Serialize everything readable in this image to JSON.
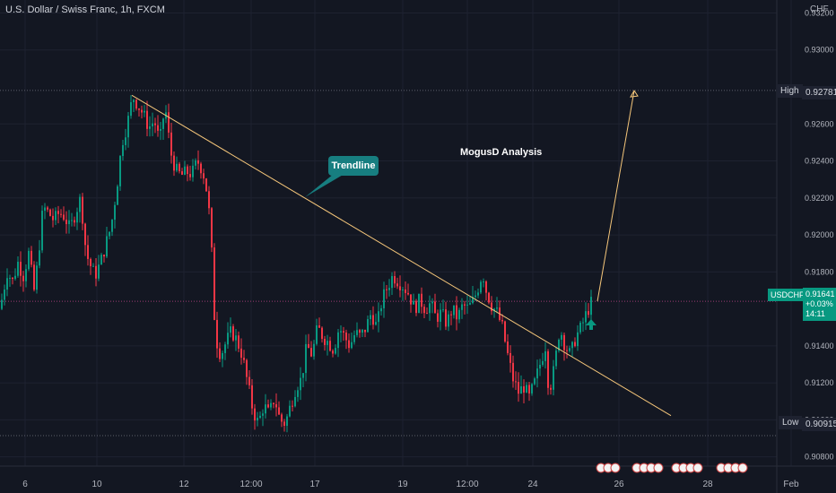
{
  "chart_data": {
    "type": "candlestick",
    "title": "U.S. Dollar / Swiss Franc, 1h, FXCM",
    "y_unit": "CHF",
    "ylim": [
      0.9075,
      0.9327
    ],
    "y_ticks": [
      "0.93200",
      "0.93000",
      "0.92600",
      "0.92400",
      "0.92200",
      "0.92000",
      "0.91800",
      "0.91400",
      "0.91200",
      "0.91000",
      "0.90800"
    ],
    "y_tick_values": [
      0.932,
      0.93,
      0.926,
      0.924,
      0.922,
      0.92,
      0.918,
      0.914,
      0.912,
      0.91,
      0.908
    ],
    "x_ticks": [
      "6",
      "10",
      "12",
      "12:00",
      "17",
      "19",
      "12:00",
      "24",
      "26",
      "28",
      "Feb"
    ],
    "high": {
      "label": "High",
      "value": "0.92781",
      "price": 0.92781
    },
    "low": {
      "label": "Low",
      "value": "0.90915",
      "price": 0.90915
    },
    "current": {
      "symbol": "USDCHF",
      "price_text": "0.91641",
      "change": "+0.03%",
      "countdown": "14:11",
      "price": 0.91641
    },
    "path": [
      [
        0,
        0.916
      ],
      [
        8,
        0.918
      ],
      [
        14,
        0.9175
      ],
      [
        20,
        0.9185
      ],
      [
        26,
        0.9178
      ],
      [
        32,
        0.919
      ],
      [
        38,
        0.917
      ],
      [
        42,
        0.9185
      ],
      [
        48,
        0.9215
      ],
      [
        54,
        0.9212
      ],
      [
        60,
        0.9208
      ],
      [
        66,
        0.9212
      ],
      [
        72,
        0.921
      ],
      [
        78,
        0.9203
      ],
      [
        84,
        0.9212
      ],
      [
        90,
        0.922
      ],
      [
        96,
        0.919
      ],
      [
        102,
        0.9182
      ],
      [
        106,
        0.9178
      ],
      [
        112,
        0.9185
      ],
      [
        118,
        0.9195
      ],
      [
        124,
        0.9205
      ],
      [
        130,
        0.9225
      ],
      [
        136,
        0.925
      ],
      [
        142,
        0.926
      ],
      [
        148,
        0.9275
      ],
      [
        154,
        0.927
      ],
      [
        160,
        0.9265
      ],
      [
        166,
        0.9258
      ],
      [
        172,
        0.9262
      ],
      [
        178,
        0.925
      ],
      [
        184,
        0.927
      ],
      [
        190,
        0.9245
      ],
      [
        196,
        0.9235
      ],
      [
        202,
        0.9232
      ],
      [
        208,
        0.9234
      ],
      [
        214,
        0.9233
      ],
      [
        220,
        0.924
      ],
      [
        226,
        0.9235
      ],
      [
        232,
        0.922
      ],
      [
        236,
        0.919
      ],
      [
        240,
        0.9145
      ],
      [
        246,
        0.9135
      ],
      [
        252,
        0.9142
      ],
      [
        258,
        0.9148
      ],
      [
        264,
        0.9143
      ],
      [
        270,
        0.9135
      ],
      [
        276,
        0.912
      ],
      [
        282,
        0.9105
      ],
      [
        288,
        0.9098
      ],
      [
        294,
        0.9108
      ],
      [
        300,
        0.9103
      ],
      [
        306,
        0.9112
      ],
      [
        312,
        0.91
      ],
      [
        318,
        0.9098
      ],
      [
        324,
        0.9108
      ],
      [
        330,
        0.9118
      ],
      [
        336,
        0.9122
      ],
      [
        342,
        0.914
      ],
      [
        348,
        0.9135
      ],
      [
        354,
        0.915
      ],
      [
        360,
        0.9145
      ],
      [
        366,
        0.9142
      ],
      [
        372,
        0.9138
      ],
      [
        378,
        0.915
      ],
      [
        384,
        0.9145
      ],
      [
        390,
        0.914
      ],
      [
        396,
        0.9147
      ],
      [
        402,
        0.9145
      ],
      [
        408,
        0.915
      ],
      [
        414,
        0.9158
      ],
      [
        420,
        0.915
      ],
      [
        426,
        0.9165
      ],
      [
        432,
        0.9172
      ],
      [
        438,
        0.9178
      ],
      [
        444,
        0.9175
      ],
      [
        450,
        0.9172
      ],
      [
        456,
        0.9168
      ],
      [
        462,
        0.916
      ],
      [
        468,
        0.9165
      ],
      [
        474,
        0.916
      ],
      [
        480,
        0.9163
      ],
      [
        486,
        0.9155
      ],
      [
        492,
        0.9158
      ],
      [
        498,
        0.9152
      ],
      [
        504,
        0.916
      ],
      [
        510,
        0.9155
      ],
      [
        516,
        0.9162
      ],
      [
        522,
        0.916
      ],
      [
        528,
        0.9165
      ],
      [
        532,
        0.917
      ],
      [
        538,
        0.918
      ],
      [
        542,
        0.917
      ],
      [
        548,
        0.9162
      ],
      [
        554,
        0.9158
      ],
      [
        560,
        0.915
      ],
      [
        566,
        0.9135
      ],
      [
        572,
        0.9122
      ],
      [
        578,
        0.9115
      ],
      [
        584,
        0.9118
      ],
      [
        590,
        0.9112
      ],
      [
        596,
        0.912
      ],
      [
        602,
        0.913
      ],
      [
        608,
        0.914
      ],
      [
        612,
        0.9115
      ],
      [
        618,
        0.9128
      ],
      [
        624,
        0.915
      ],
      [
        630,
        0.914
      ],
      [
        636,
        0.9135
      ],
      [
        642,
        0.9145
      ],
      [
        648,
        0.915
      ],
      [
        654,
        0.9158
      ],
      [
        660,
        0.91641
      ]
    ],
    "trendline": {
      "from": {
        "x": 147,
        "price": 0.92755
      },
      "to": {
        "x": 748,
        "price": 0.91023
      }
    },
    "projection": {
      "from": {
        "x": 666,
        "price": 0.91641
      },
      "to": {
        "x": 707,
        "price": 0.9278
      }
    },
    "annotations": {
      "callout": "Trendline",
      "title": "MogusD Analysis"
    },
    "colors": {
      "up": "#089981",
      "down": "#f23645",
      "trend": "#f5c67a",
      "bg": "#131722",
      "grid": "#1e2230"
    }
  }
}
